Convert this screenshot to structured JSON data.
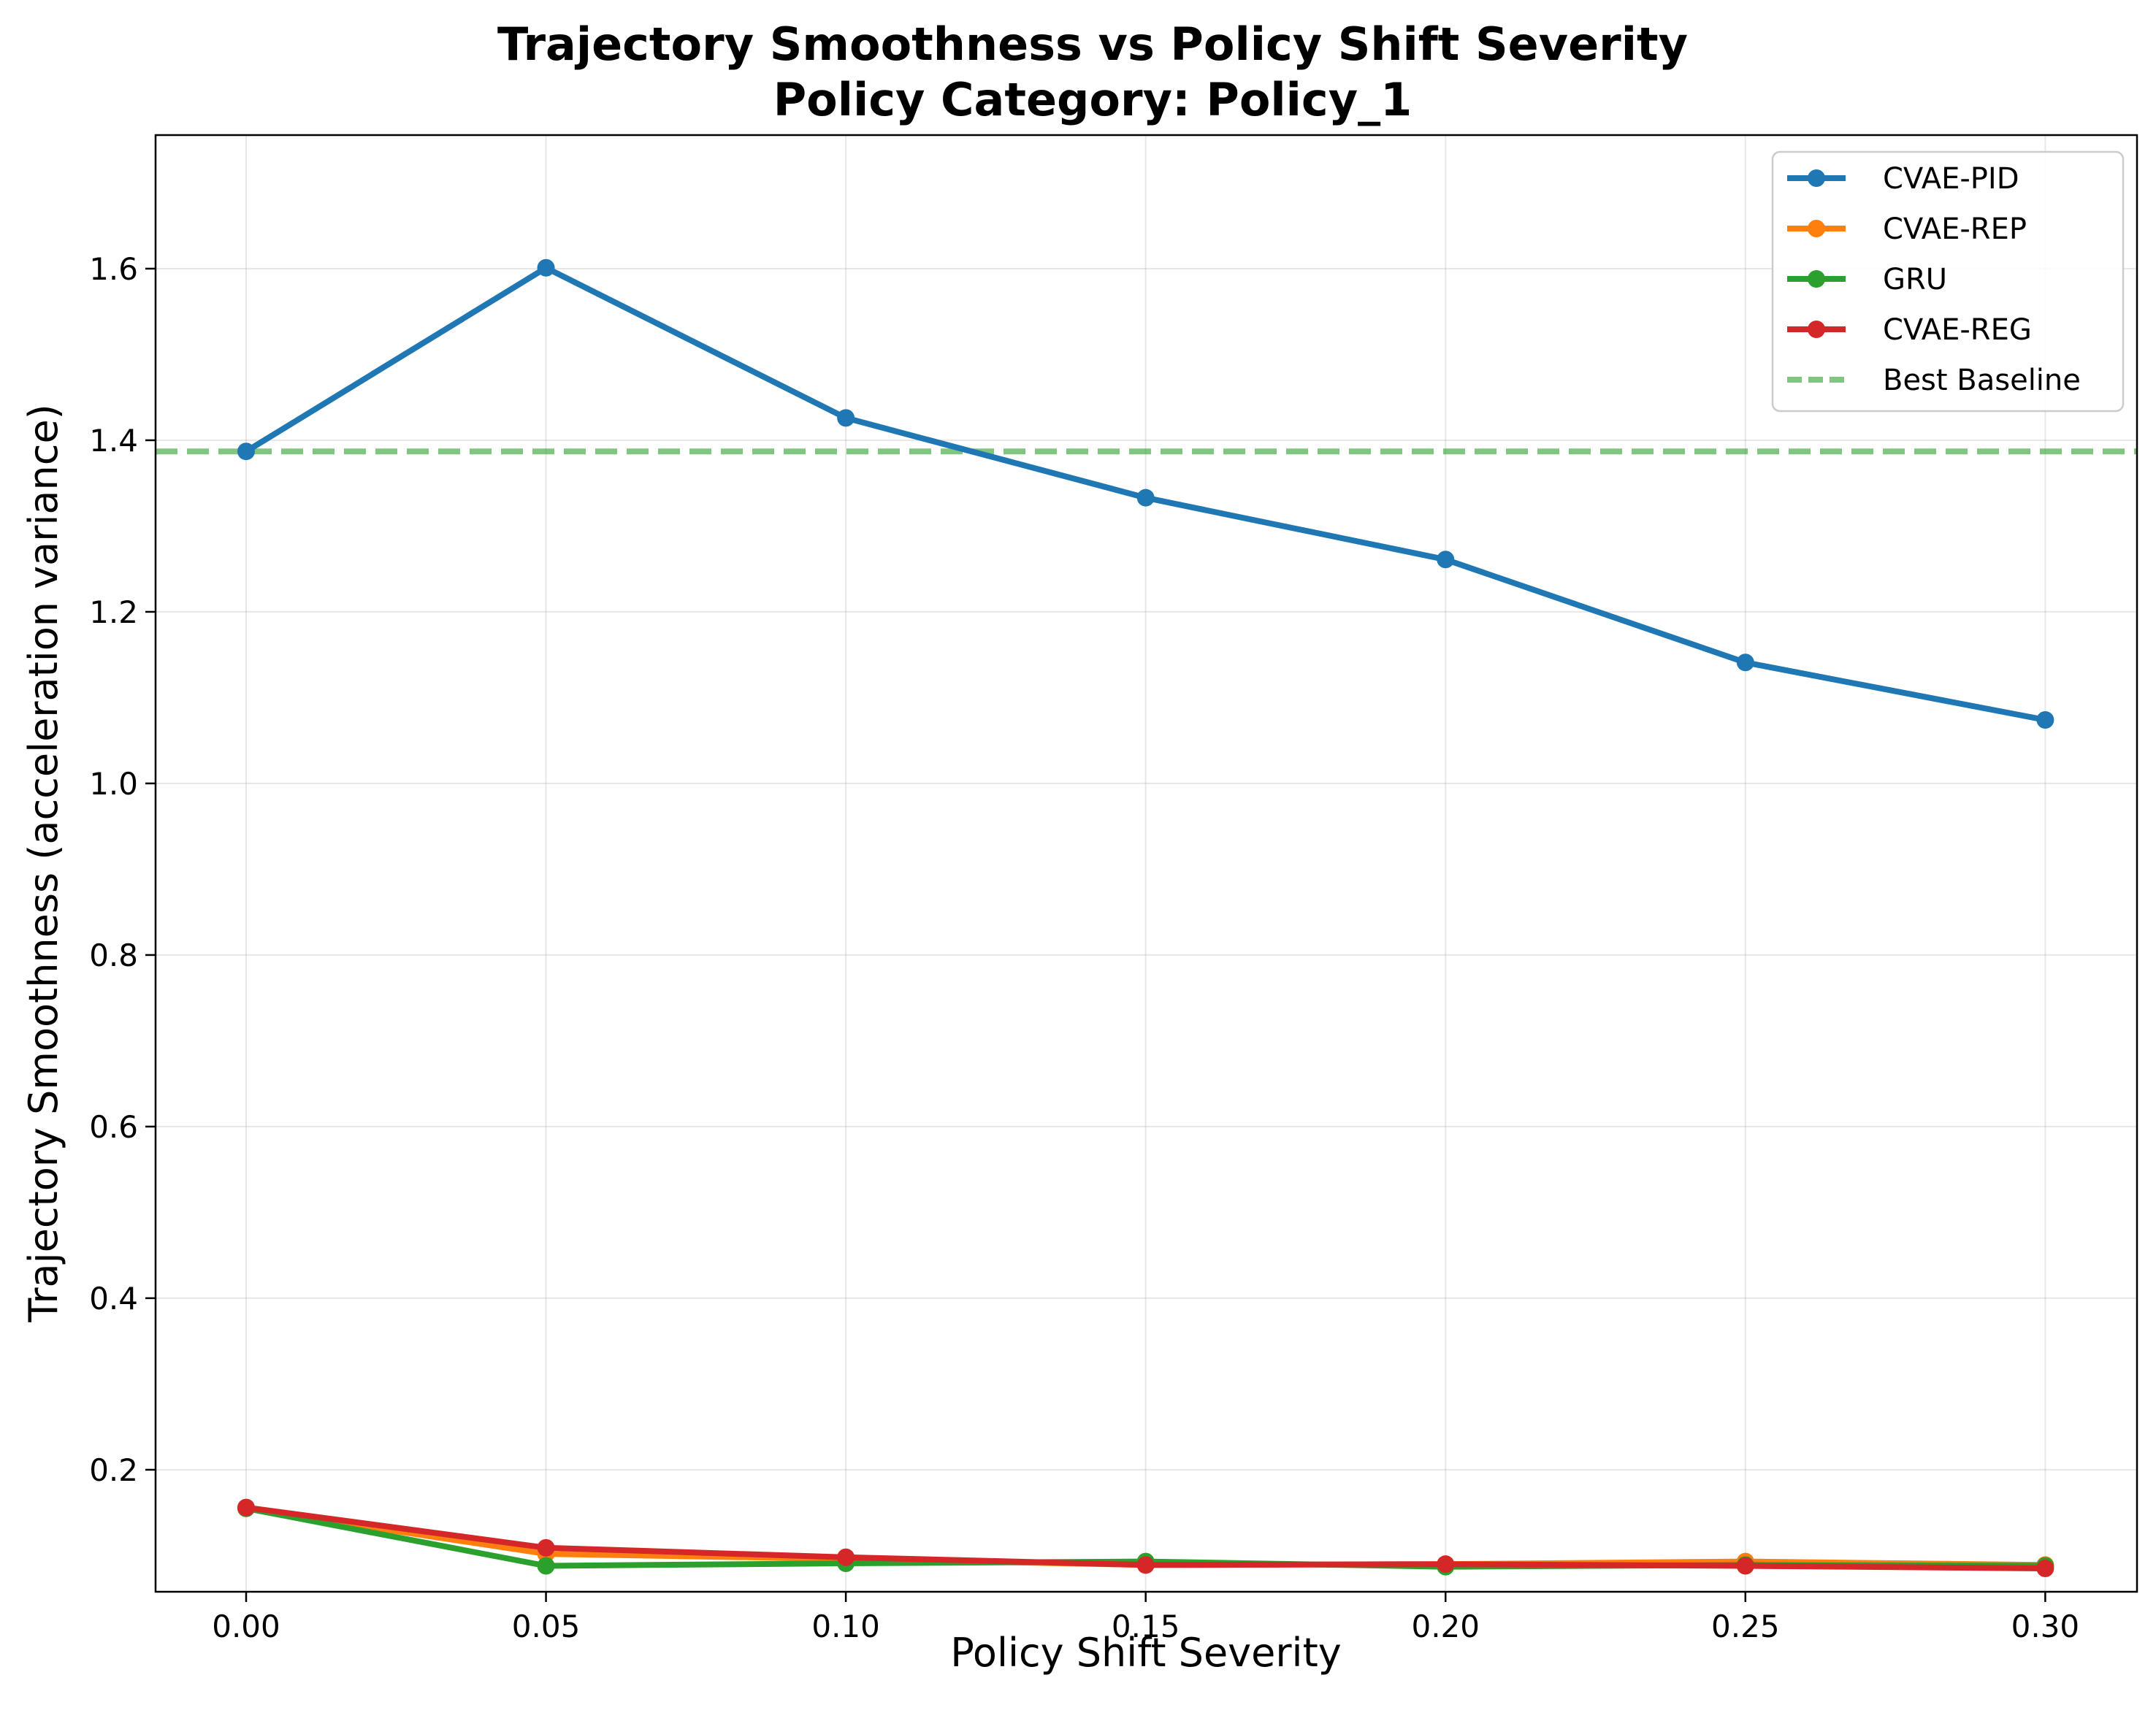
{
  "chart_data": {
    "type": "line",
    "title": "Trajectory Smoothness vs Policy Shift Severity",
    "subtitle": "Policy Category: Policy_1",
    "xlabel": "Policy Shift Severity",
    "ylabel": "Trajectory Smoothness (acceleration variance)",
    "x": [
      0.0,
      0.05,
      0.1,
      0.15,
      0.2,
      0.25,
      0.3
    ],
    "x_tick_labels": [
      "0.00",
      "0.05",
      "0.10",
      "0.15",
      "0.20",
      "0.25",
      "0.30"
    ],
    "y_ticks": [
      0.2,
      0.4,
      0.6,
      0.8,
      1.0,
      1.2,
      1.4,
      1.6
    ],
    "y_tick_labels": [
      "0.2",
      "0.4",
      "0.6",
      "0.8",
      "1.0",
      "1.2",
      "1.4",
      "1.6"
    ],
    "xlim": [
      -0.0151,
      0.3153
    ],
    "ylim": [
      0.0578,
      1.7557
    ],
    "grid": true,
    "legend_position": "top-right",
    "series": [
      {
        "name": "CVAE-PID",
        "color": "#1f77b4",
        "values": [
          1.387,
          1.601,
          1.426,
          1.333,
          1.261,
          1.141,
          1.074
        ]
      },
      {
        "name": "CVAE-REP",
        "color": "#ff7f0e",
        "values": [
          0.155,
          0.102,
          0.096,
          0.089,
          0.09,
          0.093,
          0.089
        ]
      },
      {
        "name": "GRU",
        "color": "#2ca02c",
        "values": [
          0.155,
          0.088,
          0.091,
          0.093,
          0.087,
          0.089,
          0.088
        ]
      },
      {
        "name": "CVAE-REG",
        "color": "#d62728",
        "values": [
          0.156,
          0.109,
          0.098,
          0.089,
          0.09,
          0.088,
          0.085
        ]
      }
    ],
    "reference_line": {
      "name": "Best Baseline",
      "value": 1.387,
      "color": "#2ca02c",
      "style": "dashed"
    }
  }
}
